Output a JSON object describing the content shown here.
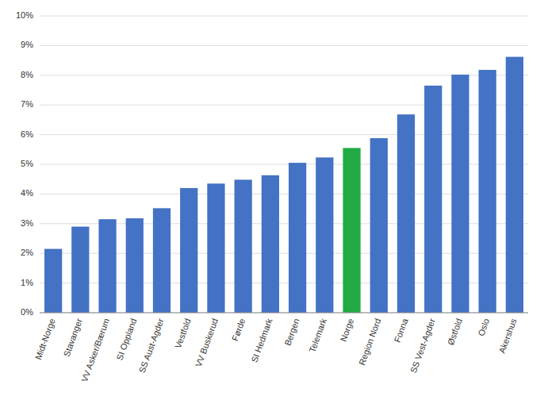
{
  "chart_data": {
    "type": "bar",
    "categories": [
      "Midt-Norge",
      "Stavanger",
      "VV Asker/Bærum",
      "SI Oppland",
      "SS Aust-Agder",
      "Vestfold",
      "VV Buskerud",
      "Førde",
      "SI Hedmark",
      "Bergen",
      "Telemark",
      "Norge",
      "Region Nord",
      "Fonna",
      "SS Vest-Agder",
      "Østfold",
      "Oslo",
      "Akershus"
    ],
    "values": [
      2.15,
      2.9,
      3.15,
      3.18,
      3.52,
      4.2,
      4.35,
      4.48,
      4.63,
      5.05,
      5.23,
      5.55,
      5.88,
      6.68,
      7.65,
      8.02,
      8.18,
      8.62
    ],
    "colors": [
      "#4472C4",
      "#4472C4",
      "#4472C4",
      "#4472C4",
      "#4472C4",
      "#4472C4",
      "#4472C4",
      "#4472C4",
      "#4472C4",
      "#4472C4",
      "#4472C4",
      "#22AA44",
      "#4472C4",
      "#4472C4",
      "#4472C4",
      "#4472C4",
      "#4472C4",
      "#4472C4"
    ],
    "ylim": [
      0,
      10
    ],
    "yticks": [
      {
        "value": 0,
        "label": "0%"
      },
      {
        "value": 1,
        "label": "1%"
      },
      {
        "value": 2,
        "label": "2%"
      },
      {
        "value": 3,
        "label": "3%"
      },
      {
        "value": 4,
        "label": "4%"
      },
      {
        "value": 5,
        "label": "5%"
      },
      {
        "value": 6,
        "label": "6%"
      },
      {
        "value": 7,
        "label": "7%"
      },
      {
        "value": 8,
        "label": "8%"
      },
      {
        "value": 9,
        "label": "9%"
      },
      {
        "value": 10,
        "label": "10%"
      }
    ],
    "grid": true
  }
}
